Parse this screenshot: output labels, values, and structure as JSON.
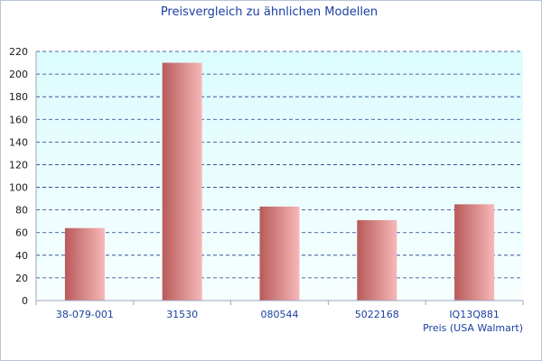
{
  "chart_data": {
    "type": "bar",
    "title": "Preisvergleich zu ähnlichen Modellen",
    "xlabel": "Preis (USA Walmart)",
    "ylabel": "",
    "categories": [
      "38-079-001",
      "31530",
      "080544",
      "5022168",
      "IQ13Q881"
    ],
    "values": [
      64,
      210,
      83,
      71,
      85
    ],
    "ylim": [
      0,
      220
    ],
    "yticks": [
      0,
      20,
      40,
      60,
      80,
      100,
      120,
      140,
      160,
      180,
      200,
      220
    ],
    "grid": true,
    "colors": {
      "bar_dark": "#b85a5a",
      "bar_light": "#f7b8b8",
      "plot_top": "#dcfcfd",
      "plot_bottom": "#f7fefe",
      "grid": "#1a3a8a",
      "text": "#1a3fa0"
    }
  }
}
